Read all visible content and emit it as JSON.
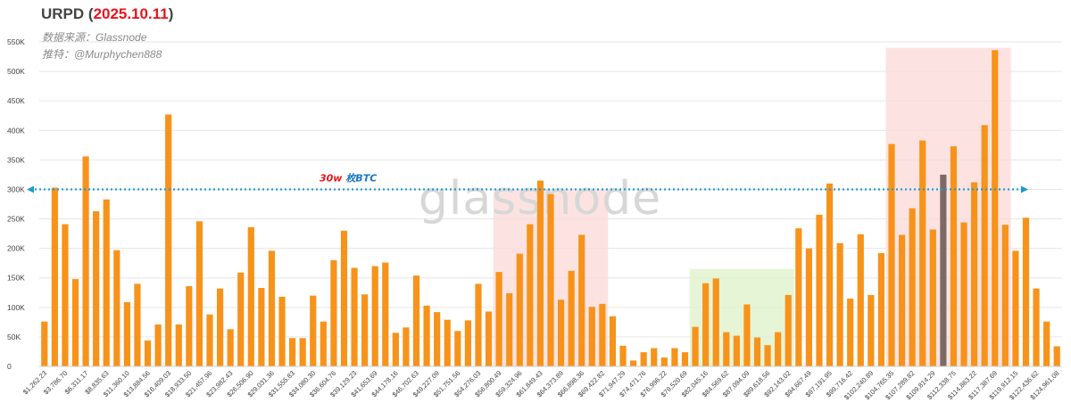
{
  "title": {
    "prefix": "URPD (",
    "date": "2025.10.11",
    "suffix": ")"
  },
  "subtitle_source": "数据来源：Glassnode",
  "subtitle_twitter": "推特：@Murphychen888",
  "watermark": "glassnode",
  "colors": {
    "bar": "#f7931a",
    "bar_highlight": "#7d6a64",
    "ref_line": "#1a9ad6",
    "ref_label_red": "#e8151b",
    "ref_label_blue": "#1a78c2",
    "zone_red": "#fbd9d7",
    "zone_green": "#def2c8",
    "grid": "#e6e6e6"
  },
  "chart_data": {
    "type": "bar",
    "ylim": [
      0,
      550000
    ],
    "yticks": [
      0,
      50000,
      100000,
      150000,
      200000,
      250000,
      300000,
      350000,
      400000,
      450000,
      500000,
      550000
    ],
    "ytick_labels": [
      "0",
      "50K",
      "100K",
      "150K",
      "200K",
      "250K",
      "300K",
      "350K",
      "400K",
      "450K",
      "500K",
      "550K"
    ],
    "grid": true,
    "values": [
      76000,
      303000,
      241000,
      148000,
      356000,
      263000,
      283000,
      197000,
      109000,
      140000,
      44000,
      71000,
      427000,
      71000,
      136000,
      246000,
      88000,
      132000,
      63000,
      159000,
      236000,
      133000,
      196000,
      118000,
      48000,
      48000,
      120000,
      76000,
      180000,
      230000,
      167000,
      122000,
      170000,
      176000,
      57000,
      66000,
      154000,
      103000,
      92000,
      79000,
      60000,
      78000,
      140000,
      93000,
      160000,
      124000,
      191000,
      241000,
      315000,
      292000,
      113000,
      162000,
      223000,
      101000,
      106000,
      85000,
      35000,
      10000,
      24000,
      31000,
      15000,
      31000,
      24000,
      67000,
      141000,
      149000,
      58000,
      52000,
      105000,
      49000,
      36000,
      58000,
      121000,
      234000,
      200000,
      257000,
      310000,
      209000,
      115000,
      224000,
      121000,
      192000,
      377000,
      223000,
      268000,
      383000,
      232000,
      325000,
      373000,
      244000,
      312000,
      409000,
      536000,
      240000,
      196000,
      252000,
      132000,
      76000,
      34000
    ],
    "highlight_index": 87,
    "x_tick_labels": [
      "$1,262.23",
      "$3,786.70",
      "$6,311.17",
      "$8,835.63",
      "$11,360.10",
      "$13,884.56",
      "$16,409.03",
      "$18,933.50",
      "$21,457.96",
      "$23,982.43",
      "$26,506.90",
      "$29,031.36",
      "$31,555.83",
      "$34,080.30",
      "$36,604.76",
      "$39,129.23",
      "$41,653.69",
      "$44,178.16",
      "$46,702.63",
      "$49,227.09",
      "$51,751.56",
      "$54,276.03",
      "$56,800.49",
      "$59,324.96",
      "$61,849.43",
      "$64,373.89",
      "$66,898.36",
      "$69,422.82",
      "$71,947.29",
      "$74,471.76",
      "$76,996.22",
      "$79,520.69",
      "$82,045.16",
      "$84,569.62",
      "$87,094.09",
      "$89,618.56",
      "$92,143.02",
      "$94,667.49",
      "$97,191.95",
      "$99,716.42",
      "$102,240.89",
      "$104,765.35",
      "$107,289.82",
      "$109,814.29",
      "$112,338.75",
      "$114,863.22",
      "$117,387.69",
      "$119,912.15",
      "$122,436.62",
      "$124,961.08"
    ],
    "x_tick_every": 2,
    "reference_line": {
      "value": 300000,
      "label_red": "30w",
      "label_blue": "枚BTC"
    },
    "zones": [
      {
        "color": "red",
        "from_index": 44,
        "to_index": 54,
        "top": 300000
      },
      {
        "color": "green",
        "from_index": 63,
        "to_index": 72,
        "top": 165000
      },
      {
        "color": "red",
        "from_index": 82,
        "to_index": 93,
        "top": 540000
      }
    ]
  }
}
